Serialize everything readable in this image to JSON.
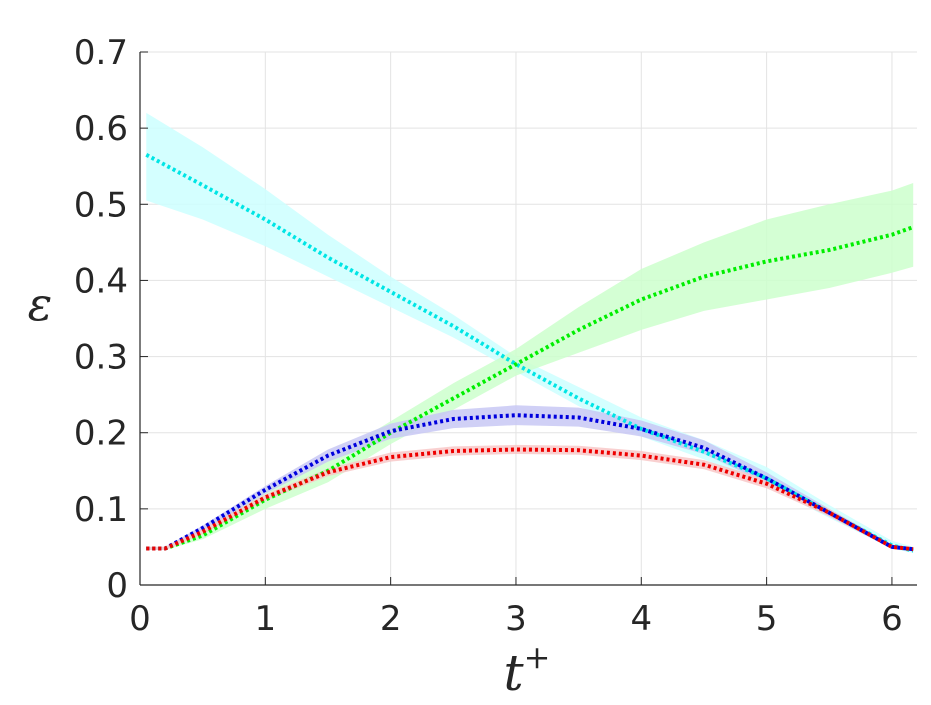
{
  "chart_data": {
    "type": "line",
    "xlabel": "t",
    "xlabel_superscript": "+",
    "ylabel": "ε",
    "xlim": [
      0,
      6.2
    ],
    "ylim": [
      0,
      0.7
    ],
    "xticks": [
      0,
      1,
      2,
      3,
      4,
      5,
      6
    ],
    "xtick_labels": [
      "0",
      "1",
      "2",
      "3",
      "4",
      "5",
      "6"
    ],
    "yticks": [
      0,
      0.1,
      0.2,
      0.3,
      0.4,
      0.5,
      0.6,
      0.7
    ],
    "ytick_labels": [
      "0",
      "0.1",
      "0.2",
      "0.3",
      "0.4",
      "0.5",
      "0.6",
      "0.7"
    ],
    "grid": true,
    "line_style": "dotted",
    "series": [
      {
        "color": "#00e5e5",
        "band_color": "#ccffff",
        "x": [
          0.05,
          0.5,
          1.0,
          1.5,
          2.0,
          2.5,
          3.0,
          3.5,
          4.0,
          4.5,
          5.0,
          5.5,
          6.0,
          6.17
        ],
        "mean": [
          0.565,
          0.525,
          0.48,
          0.43,
          0.385,
          0.34,
          0.29,
          0.245,
          0.205,
          0.175,
          0.14,
          0.095,
          0.052,
          0.045
        ],
        "lower": [
          0.505,
          0.48,
          0.445,
          0.405,
          0.365,
          0.325,
          0.28,
          0.235,
          0.195,
          0.165,
          0.13,
          0.088,
          0.048,
          0.042
        ],
        "upper": [
          0.62,
          0.575,
          0.52,
          0.46,
          0.405,
          0.355,
          0.3,
          0.26,
          0.22,
          0.19,
          0.155,
          0.105,
          0.058,
          0.05
        ]
      },
      {
        "color": "#00ee00",
        "band_color": "#ccffcc",
        "x": [
          0.05,
          0.2,
          0.5,
          1.0,
          1.5,
          2.0,
          2.5,
          3.0,
          3.5,
          4.0,
          4.5,
          5.0,
          5.5,
          6.0,
          6.17
        ],
        "mean": [
          0.048,
          0.048,
          0.065,
          0.112,
          0.15,
          0.2,
          0.245,
          0.29,
          0.335,
          0.375,
          0.405,
          0.425,
          0.44,
          0.46,
          0.47
        ],
        "lower": [
          0.046,
          0.046,
          0.06,
          0.1,
          0.135,
          0.185,
          0.23,
          0.275,
          0.305,
          0.335,
          0.36,
          0.375,
          0.39,
          0.41,
          0.418
        ],
        "upper": [
          0.05,
          0.05,
          0.07,
          0.125,
          0.165,
          0.215,
          0.265,
          0.31,
          0.365,
          0.415,
          0.45,
          0.48,
          0.5,
          0.518,
          0.528
        ]
      },
      {
        "color": "#0000dd",
        "band_color": "#c8c8f4",
        "x": [
          0.05,
          0.2,
          0.5,
          1.0,
          1.5,
          2.0,
          2.5,
          3.0,
          3.5,
          4.0,
          4.5,
          5.0,
          5.5,
          6.0,
          6.17
        ],
        "mean": [
          0.048,
          0.048,
          0.075,
          0.125,
          0.17,
          0.202,
          0.218,
          0.223,
          0.22,
          0.205,
          0.18,
          0.14,
          0.095,
          0.05,
          0.047
        ],
        "lower": [
          0.046,
          0.046,
          0.072,
          0.12,
          0.162,
          0.192,
          0.206,
          0.21,
          0.208,
          0.195,
          0.172,
          0.134,
          0.09,
          0.048,
          0.045
        ],
        "upper": [
          0.05,
          0.05,
          0.078,
          0.13,
          0.178,
          0.212,
          0.23,
          0.236,
          0.233,
          0.216,
          0.19,
          0.148,
          0.1,
          0.053,
          0.049
        ]
      },
      {
        "color": "#ee0000",
        "band_color": "#f8c8c8",
        "x": [
          0.05,
          0.2,
          0.5,
          1.0,
          1.5,
          2.0,
          2.5,
          3.0,
          3.5,
          4.0,
          4.5,
          5.0,
          5.5,
          6.0,
          6.17
        ],
        "mean": [
          0.048,
          0.048,
          0.07,
          0.115,
          0.148,
          0.168,
          0.176,
          0.178,
          0.177,
          0.17,
          0.158,
          0.133,
          0.095,
          0.05,
          0.047
        ],
        "lower": [
          0.046,
          0.046,
          0.067,
          0.111,
          0.143,
          0.162,
          0.17,
          0.172,
          0.171,
          0.164,
          0.152,
          0.127,
          0.09,
          0.048,
          0.045
        ],
        "upper": [
          0.05,
          0.05,
          0.073,
          0.119,
          0.153,
          0.174,
          0.182,
          0.184,
          0.183,
          0.176,
          0.164,
          0.139,
          0.1,
          0.052,
          0.049
        ]
      }
    ]
  }
}
